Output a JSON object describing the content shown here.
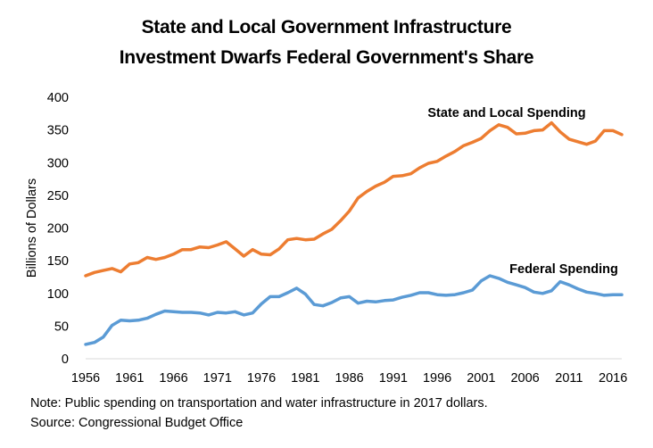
{
  "title_line1": "State and Local Government Infrastructure",
  "title_line2": "Investment Dwarfs Federal Government's Share",
  "note": "Note: Public spending on transportation and water infrastructure in 2017 dollars.",
  "source": "Source: Congressional Budget Office",
  "chart_data": {
    "type": "line",
    "ylabel": "Billions of Dollars",
    "xlabel": "",
    "ylim": [
      0,
      400
    ],
    "xlim": [
      1956,
      2017
    ],
    "yticks": [
      0,
      50,
      100,
      150,
      200,
      250,
      300,
      350,
      400
    ],
    "xticks": [
      1956,
      1961,
      1966,
      1971,
      1976,
      1981,
      1986,
      1991,
      1996,
      2001,
      2006,
      2011,
      2016
    ],
    "grid": false,
    "x": [
      1956,
      1957,
      1958,
      1959,
      1960,
      1961,
      1962,
      1963,
      1964,
      1965,
      1966,
      1967,
      1968,
      1969,
      1970,
      1971,
      1972,
      1973,
      1974,
      1975,
      1976,
      1977,
      1978,
      1979,
      1980,
      1981,
      1982,
      1983,
      1984,
      1985,
      1986,
      1987,
      1988,
      1989,
      1990,
      1991,
      1992,
      1993,
      1994,
      1995,
      1996,
      1997,
      1998,
      1999,
      2000,
      2001,
      2002,
      2003,
      2004,
      2005,
      2006,
      2007,
      2008,
      2009,
      2010,
      2011,
      2012,
      2013,
      2014,
      2015,
      2016,
      2017
    ],
    "series": [
      {
        "name": "State and Local Spending",
        "color": "#ED7D31",
        "values": [
          127,
          132,
          135,
          138,
          133,
          145,
          147,
          155,
          152,
          155,
          160,
          167,
          167,
          171,
          170,
          174,
          179,
          168,
          157,
          167,
          160,
          159,
          168,
          182,
          184,
          182,
          183,
          191,
          198,
          211,
          226,
          246,
          256,
          264,
          270,
          279,
          280,
          283,
          292,
          299,
          302,
          310,
          317,
          326,
          331,
          337,
          349,
          358,
          354,
          344,
          345,
          349,
          350,
          361,
          347,
          336,
          332,
          328,
          333,
          349,
          349,
          343
        ]
      },
      {
        "name": "Federal Spending",
        "color": "#5B9BD5",
        "values": [
          22,
          25,
          33,
          51,
          59,
          58,
          59,
          62,
          68,
          73,
          72,
          71,
          71,
          70,
          67,
          71,
          70,
          72,
          67,
          70,
          84,
          95,
          95,
          101,
          108,
          99,
          83,
          81,
          86,
          93,
          95,
          85,
          88,
          87,
          89,
          90,
          94,
          97,
          101,
          101,
          98,
          97,
          98,
          101,
          105,
          119,
          127,
          123,
          117,
          113,
          109,
          102,
          100,
          104,
          118,
          113,
          107,
          102,
          100,
          97,
          98,
          98
        ]
      }
    ]
  }
}
